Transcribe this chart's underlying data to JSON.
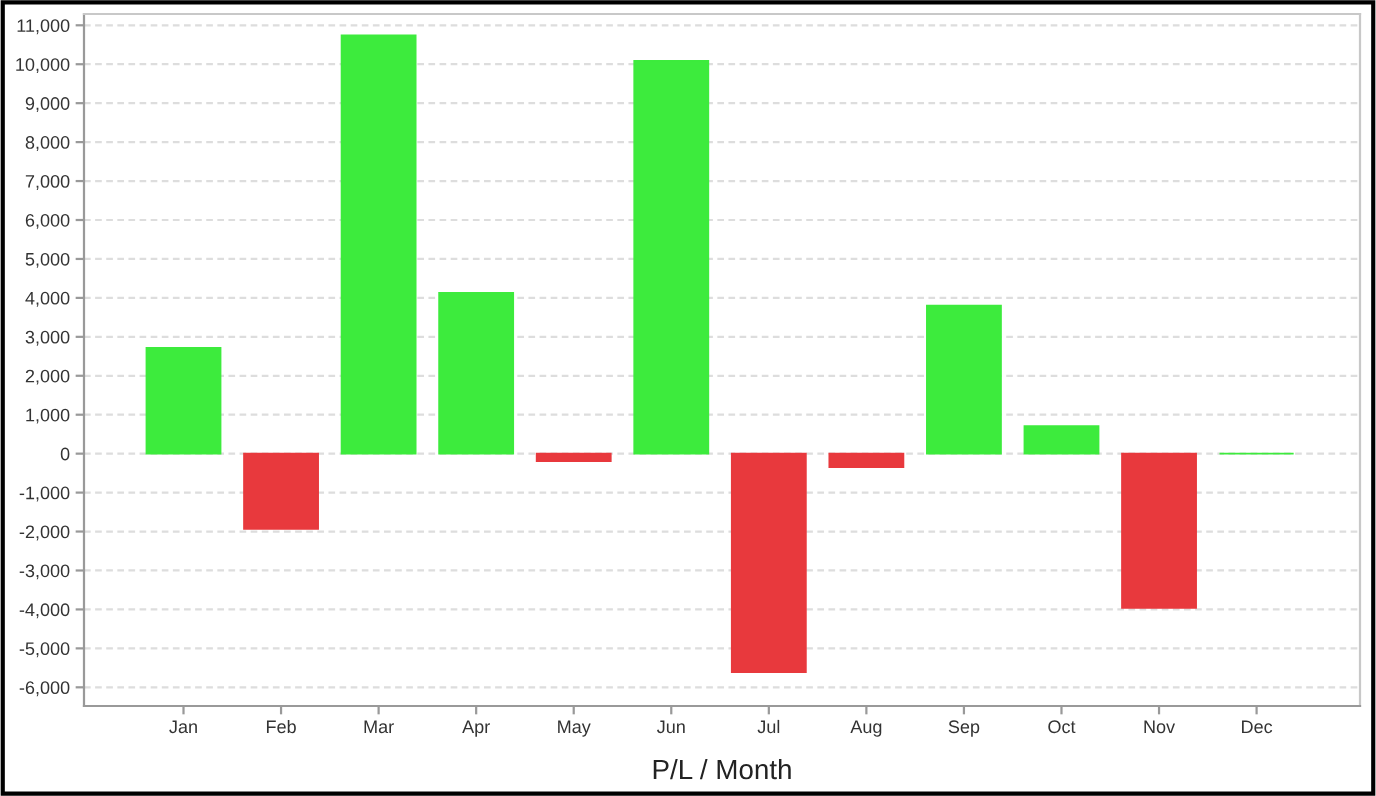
{
  "chart_data": {
    "type": "bar",
    "xlabel": "P/L / Month",
    "categories": [
      "Jan",
      "Feb",
      "Mar",
      "Apr",
      "May",
      "Jun",
      "Jul",
      "Aug",
      "Sep",
      "Oct",
      "Nov",
      "Dec"
    ],
    "values": [
      2720,
      -1930,
      10740,
      4130,
      -190,
      10090,
      -5610,
      -350,
      3800,
      710,
      -3960,
      0
    ],
    "colors": [
      "#3deb3d",
      "#e8393d",
      "#3deb3d",
      "#3deb3d",
      "#e8393d",
      "#3deb3d",
      "#e8393d",
      "#e8393d",
      "#3deb3d",
      "#3deb3d",
      "#e8393d",
      "#3deb3d"
    ],
    "ylim": [
      -6480,
      11290
    ],
    "yticks": [
      {
        "value": -6000,
        "label": "-6,000"
      },
      {
        "value": -5000,
        "label": "-5,000"
      },
      {
        "value": -4000,
        "label": "-4,000"
      },
      {
        "value": -3000,
        "label": "-3,000"
      },
      {
        "value": -2000,
        "label": "-2,000"
      },
      {
        "value": -1000,
        "label": "-1,000"
      },
      0,
      {
        "value": 1000,
        "label": "1,000"
      },
      {
        "value": 2000,
        "label": "2,000"
      },
      {
        "value": 3000,
        "label": "3,000"
      },
      {
        "value": 4000,
        "label": "4,000"
      },
      {
        "value": 5000,
        "label": "5,000"
      },
      {
        "value": 6000,
        "label": "6,000"
      },
      {
        "value": 7000,
        "label": "7,000"
      },
      {
        "value": 8000,
        "label": "8,000"
      },
      {
        "value": 9000,
        "label": "9,000"
      },
      {
        "value": 10000,
        "label": "10,000"
      },
      {
        "value": 11000,
        "label": "11,000"
      }
    ],
    "grid": "y"
  }
}
